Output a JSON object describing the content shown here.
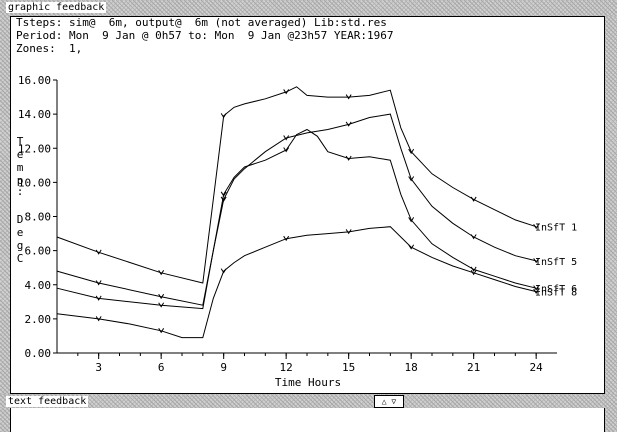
{
  "panels": {
    "graphic_title": "graphic feedback",
    "text_title": "text feedback",
    "scroll_arrows": "△ ▽"
  },
  "header": {
    "line1": "Tsteps: sim@  6m, output@  6m (not averaged) Lib:std.res",
    "line2": "Period: Mon  9 Jan @ 0h57 to: Mon  9 Jan @23h57 YEAR:1967",
    "line3": "Zones:  1,"
  },
  "chart_data": {
    "type": "line",
    "xlabel": "Time Hours",
    "ylabel": "Temp: Deg C",
    "ylabel_chars": [
      "T",
      "e",
      "m",
      "p",
      ":",
      "D",
      "e",
      "g",
      "C"
    ],
    "xlim": [
      1,
      25
    ],
    "ylim": [
      0,
      16
    ],
    "xticks": [
      3,
      6,
      9,
      12,
      15,
      18,
      21,
      24
    ],
    "yticks": [
      "0.00",
      "2.00",
      "4.00",
      "6.00",
      "8.00",
      "10.00",
      "12.00",
      "14.00",
      "16.00"
    ],
    "series": [
      {
        "name": "InSfT  1",
        "x": [
          1,
          3,
          6,
          8,
          8.5,
          9,
          9.5,
          10,
          11,
          12,
          12.5,
          13,
          14,
          15,
          16,
          17,
          17.5,
          18,
          19,
          20,
          21,
          22,
          23,
          24
        ],
        "y": [
          6.8,
          5.9,
          4.7,
          4.1,
          9.0,
          13.9,
          14.4,
          14.6,
          14.9,
          15.3,
          15.6,
          15.1,
          15.0,
          15.0,
          15.1,
          15.4,
          13.2,
          11.8,
          10.5,
          9.7,
          9.0,
          8.4,
          7.8,
          7.4
        ],
        "markers": [
          3,
          6,
          9,
          12,
          15,
          18,
          21,
          24
        ]
      },
      {
        "name": "InSfT  5",
        "x": [
          1,
          3,
          6,
          8,
          8.5,
          9,
          9.5,
          10,
          11,
          12,
          13,
          14,
          15,
          16,
          17,
          17.5,
          18,
          19,
          20,
          21,
          22,
          23,
          24
        ],
        "y": [
          4.8,
          4.1,
          3.3,
          2.8,
          6.0,
          9.0,
          10.2,
          10.8,
          11.8,
          12.6,
          12.9,
          13.1,
          13.4,
          13.8,
          14.0,
          12.0,
          10.2,
          8.6,
          7.6,
          6.8,
          6.2,
          5.7,
          5.4
        ],
        "markers": [
          3,
          6,
          9,
          12,
          15,
          18,
          21,
          24
        ]
      },
      {
        "name": "InSfT  6",
        "x": [
          1,
          3,
          6,
          8,
          8.5,
          9,
          9.5,
          10,
          11,
          12,
          12.5,
          13,
          13.5,
          14,
          15,
          16,
          17,
          17.5,
          18,
          19,
          20,
          21,
          22,
          23,
          24
        ],
        "y": [
          3.8,
          3.2,
          2.8,
          2.6,
          6.0,
          9.3,
          10.3,
          10.9,
          11.3,
          11.9,
          12.8,
          13.1,
          12.7,
          11.8,
          11.4,
          11.5,
          11.3,
          9.3,
          7.8,
          6.4,
          5.6,
          4.9,
          4.5,
          4.1,
          3.8
        ],
        "markers": [
          3,
          6,
          9,
          12,
          15,
          18,
          21,
          24
        ]
      },
      {
        "name": "InSfT  8",
        "x": [
          1,
          3,
          4.5,
          6,
          7,
          8,
          8.5,
          9,
          9.5,
          10,
          11,
          12,
          13,
          14,
          15,
          16,
          17,
          17.5,
          18,
          19,
          20,
          21,
          22,
          23,
          24
        ],
        "y": [
          2.3,
          2.0,
          1.7,
          1.3,
          0.9,
          0.9,
          3.2,
          4.8,
          5.3,
          5.7,
          6.2,
          6.7,
          6.9,
          7.0,
          7.1,
          7.3,
          7.4,
          6.8,
          6.2,
          5.6,
          5.1,
          4.7,
          4.3,
          3.9,
          3.6
        ],
        "markers": [
          3,
          6,
          9,
          12,
          15,
          18,
          21,
          24
        ]
      }
    ],
    "legend_placement": "right-of-line-ends",
    "grid": false
  },
  "colors": {
    "ink": "#000000",
    "background": "#ffffff",
    "frame": "#c8c8c8"
  }
}
